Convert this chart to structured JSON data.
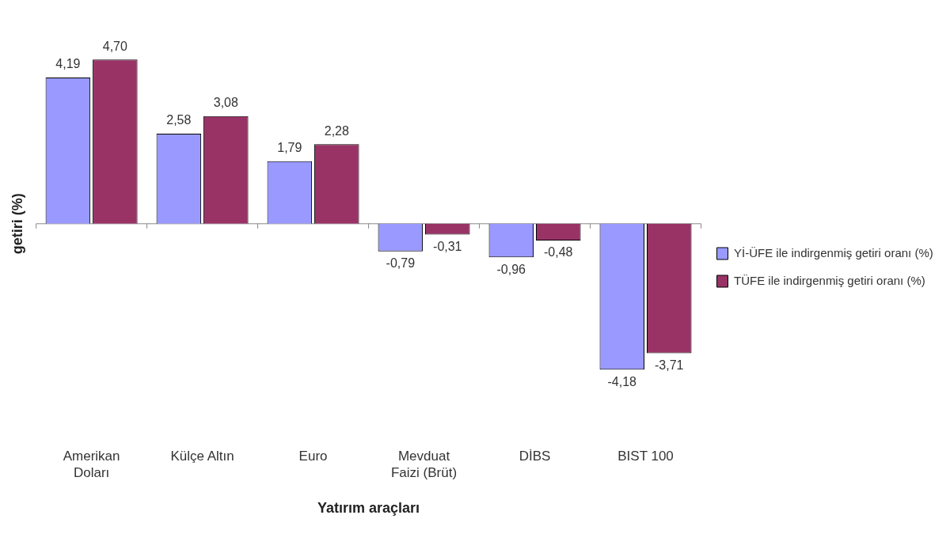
{
  "chart_data": {
    "type": "bar",
    "ylabel": "getiri (%)",
    "xlabel": "Yatırım araçları",
    "categories": [
      "Amerikan Doları",
      "Külçe Altın",
      "Euro",
      "Mevduat Faizi (Brüt)",
      "DİBS",
      "BIST 100"
    ],
    "series": [
      {
        "name": "Yİ-ÜFE ile indirgenmiş getiri oranı (%)",
        "color": "#9999ff",
        "values": [
          4.19,
          2.58,
          1.79,
          -0.79,
          -0.96,
          -4.18
        ],
        "value_labels": [
          "4,19",
          "2,58",
          "1,79",
          "-0,79",
          "-0,96",
          "-4,18"
        ]
      },
      {
        "name": "TÜFE ile indirgenmiş getiri oranı (%)",
        "color": "#993366",
        "values": [
          4.7,
          3.08,
          2.28,
          -0.31,
          -0.48,
          -3.71
        ],
        "value_labels": [
          "4,70",
          "3,08",
          "2,28",
          "-0,31",
          "-0,48",
          "-3,71"
        ]
      }
    ],
    "grid": false,
    "legend": "right"
  }
}
